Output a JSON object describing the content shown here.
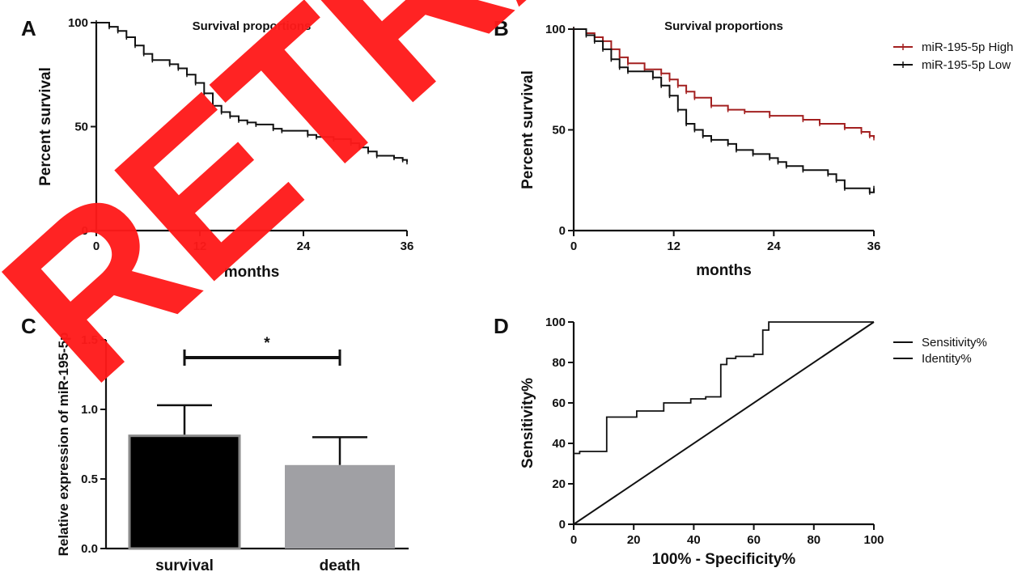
{
  "watermark": "RETRACTED",
  "chart_data": [
    {
      "panel": "A",
      "type": "line",
      "title": "Survival proportions",
      "xlabel": "months",
      "ylabel": "Percent survival",
      "xlim": [
        0,
        36
      ],
      "ylim": [
        0,
        100
      ],
      "xticks": [
        0,
        12,
        24,
        36
      ],
      "yticks": [
        0,
        50,
        100
      ],
      "step": true,
      "series": [
        {
          "color": "#111111",
          "x": [
            0,
            1.5,
            2.5,
            3.5,
            4.5,
            5.5,
            6.5,
            8.5,
            9.5,
            10.5,
            11.5,
            12.5,
            13.5,
            14.5,
            15.5,
            16.5,
            17.5,
            18.5,
            20.5,
            21.5,
            24.5,
            25.5,
            27.5,
            29.5,
            30.5,
            31.5,
            32.5,
            34.5,
            35.5,
            36
          ],
          "y": [
            100,
            98,
            96,
            93,
            89,
            85,
            82,
            80,
            78,
            75,
            71,
            66,
            60,
            57,
            55,
            53,
            52,
            51,
            49,
            48,
            46,
            45,
            44,
            42,
            40,
            38,
            36,
            35,
            34,
            33
          ]
        }
      ]
    },
    {
      "panel": "B",
      "type": "line",
      "title": "Survival proportions",
      "xlabel": "months",
      "ylabel": "Percent survival",
      "xlim": [
        0,
        36
      ],
      "ylim": [
        0,
        100
      ],
      "xticks": [
        0,
        12,
        24,
        36
      ],
      "yticks": [
        0,
        50,
        100
      ],
      "step": true,
      "legend_position": "right",
      "series": [
        {
          "name": "miR-195-5p High",
          "color": "#a32020",
          "x": [
            0,
            1.5,
            2.5,
            3.5,
            4.5,
            5.5,
            6.5,
            8.5,
            10.5,
            11.5,
            12.5,
            13.5,
            14.5,
            16.5,
            18.5,
            20.5,
            23.5,
            27.5,
            29.5,
            32.5,
            34.5,
            35.5,
            36
          ],
          "y": [
            100,
            98,
            96,
            94,
            90,
            86,
            83,
            80,
            78,
            75,
            72,
            69,
            66,
            62,
            60,
            59,
            57,
            55,
            53,
            51,
            49,
            47,
            46
          ]
        },
        {
          "name": "miR-195-5p Low",
          "color": "#111111",
          "x": [
            0,
            1.5,
            2.5,
            3.5,
            4.5,
            5.5,
            6.5,
            9.5,
            10.5,
            11.5,
            12.5,
            13.5,
            14.5,
            15.5,
            16.5,
            18.5,
            19.5,
            21.5,
            23.5,
            24.5,
            25.5,
            27.5,
            30.5,
            31.5,
            32.5,
            35.5,
            36
          ],
          "y": [
            100,
            97,
            94,
            90,
            85,
            81,
            79,
            76,
            72,
            67,
            60,
            53,
            50,
            47,
            45,
            43,
            40,
            38,
            36,
            34,
            32,
            30,
            28,
            25,
            21,
            19,
            21
          ]
        }
      ]
    },
    {
      "panel": "C",
      "type": "bar",
      "categories": [
        "survival",
        "death"
      ],
      "values": [
        0.81,
        0.6
      ],
      "errors": [
        0.22,
        0.2
      ],
      "colors": [
        "#000000",
        "#a0a0a4"
      ],
      "ylabel": "Relative expression  of miR-195-5p",
      "ylim": [
        0,
        1.5
      ],
      "yticks": [
        "0.0",
        "0.5",
        "1.0",
        "1.5"
      ],
      "significance": "*"
    },
    {
      "panel": "D",
      "type": "line",
      "xlabel": "100% - Specificity%",
      "ylabel": "Sensitivity%",
      "xlim": [
        0,
        100
      ],
      "ylim": [
        0,
        100
      ],
      "xticks": [
        0,
        20,
        40,
        60,
        80,
        100
      ],
      "yticks": [
        0,
        20,
        40,
        60,
        80,
        100
      ],
      "legend_position": "right",
      "series": [
        {
          "name": "Sensitivity%",
          "color": "#111111",
          "x": [
            0,
            0,
            2,
            2,
            11,
            11,
            21,
            21,
            30,
            30,
            39,
            39,
            44,
            44,
            49,
            49,
            51,
            51,
            54,
            54,
            60,
            60,
            63,
            63,
            65,
            65,
            100
          ],
          "y": [
            0,
            35,
            35,
            36,
            36,
            53,
            53,
            56,
            56,
            60,
            60,
            62,
            62,
            63,
            63,
            79,
            79,
            82,
            82,
            83,
            83,
            84,
            84,
            96,
            96,
            100,
            100
          ]
        },
        {
          "name": "Identity%",
          "color": "#111111",
          "x": [
            0,
            100
          ],
          "y": [
            0,
            100
          ]
        }
      ]
    }
  ]
}
